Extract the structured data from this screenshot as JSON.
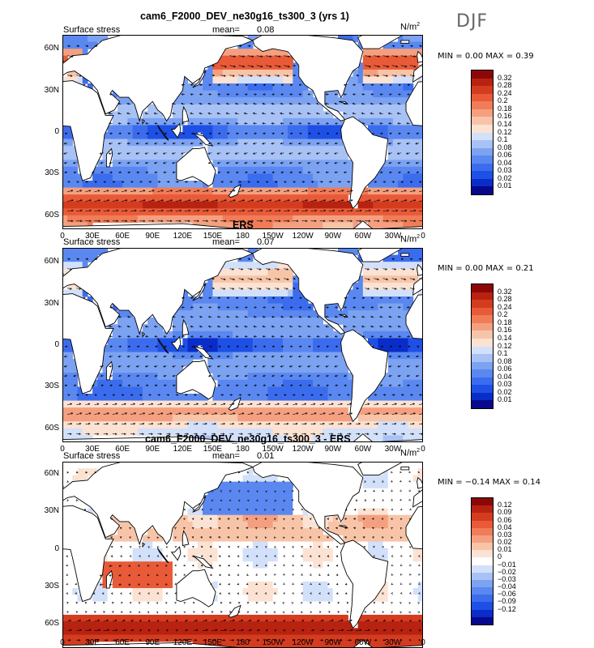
{
  "season": "DJF",
  "icons": {
    "vector_arrow": "arrow-icon"
  },
  "xticks": [
    "0",
    "30E",
    "60E",
    "90E",
    "120E",
    "150E",
    "180",
    "150W",
    "120W",
    "90W",
    "60W",
    "30W",
    "0"
  ],
  "yticks": [
    "60N",
    "30N",
    "0",
    "30S",
    "60S"
  ],
  "colors": {
    "seq": [
      "#08088c",
      "#0a2cc8",
      "#1e50e6",
      "#3c6cee",
      "#5a88f0",
      "#7ca2f2",
      "#a8c2f6",
      "#d2e0fa",
      "#fbe2d2",
      "#f8c4a8",
      "#f4a080",
      "#f07c58",
      "#e85a38",
      "#d43c20",
      "#b82210",
      "#8c0808"
    ],
    "div": [
      "#08088c",
      "#0a2cc8",
      "#1e50e6",
      "#3c6cee",
      "#5a88f0",
      "#7ca2f2",
      "#a8c2f6",
      "#d2e0fa",
      "#ffffff",
      "#fbe2d2",
      "#f8c4a8",
      "#f4a080",
      "#f07c58",
      "#e85a38",
      "#d43c20",
      "#b82210",
      "#8c0808"
    ]
  },
  "panels": [
    {
      "title": "cam6_F2000_DEV_ne30g16_ts300_3 (yrs 1)",
      "label": "Surface stress",
      "mean_label": "mean=",
      "mean": "0.08",
      "units": "N/m",
      "units_sup": "2",
      "min_label": "MIN =",
      "min": "0.00",
      "max_label": "MAX =",
      "max": "0.39",
      "legend": [
        "0.32",
        "0.28",
        "0.24",
        "0.2",
        "0.18",
        "0.16",
        "0.14",
        "0.12",
        "0.1",
        "0.08",
        "0.06",
        "0.04",
        "0.03",
        "0.02",
        "0.01"
      ]
    },
    {
      "title": "ERS",
      "label": "Surface stress",
      "mean_label": "mean=",
      "mean": "0.07",
      "units": "N/m",
      "units_sup": "2",
      "min_label": "MIN =",
      "min": "0.00",
      "max_label": "MAX =",
      "max": "0.21",
      "legend": [
        "0.32",
        "0.28",
        "0.24",
        "0.2",
        "0.18",
        "0.16",
        "0.14",
        "0.12",
        "0.1",
        "0.08",
        "0.06",
        "0.04",
        "0.03",
        "0.02",
        "0.01"
      ]
    },
    {
      "title": "cam6_F2000_DEV_ne30g16_ts300_3 - ERS",
      "label": "Surface stress",
      "mean_label": "mean=",
      "mean": "0.01",
      "units": "N/m",
      "units_sup": "2",
      "min_label": "MIN =",
      "min": "−0.14",
      "max_label": "MAX =",
      "max": "0.14",
      "legend": [
        "0.12",
        "0.09",
        "0.06",
        "0.04",
        "0.03",
        "0.02",
        "0.01",
        "0",
        "−0.01",
        "−0.02",
        "−0.03",
        "−0.04",
        "−0.06",
        "−0.09",
        "−0.12"
      ]
    }
  ],
  "chart_data": {
    "type": "heatmap",
    "description_fields": [
      "x: longitude (deg E, 0-360)",
      "y: latitude (deg)",
      "value: surface stress (N/m2)"
    ],
    "x_range": [
      0,
      360
    ],
    "y_range": [
      -70,
      70
    ],
    "panels": [
      {
        "name": "model",
        "mean": 0.08,
        "min": 0.0,
        "max": 0.39
      },
      {
        "name": "ERS",
        "mean": 0.07,
        "min": 0.0,
        "max": 0.21
      },
      {
        "name": "difference",
        "mean": 0.01,
        "min": -0.14,
        "max": 0.14
      }
    ]
  }
}
